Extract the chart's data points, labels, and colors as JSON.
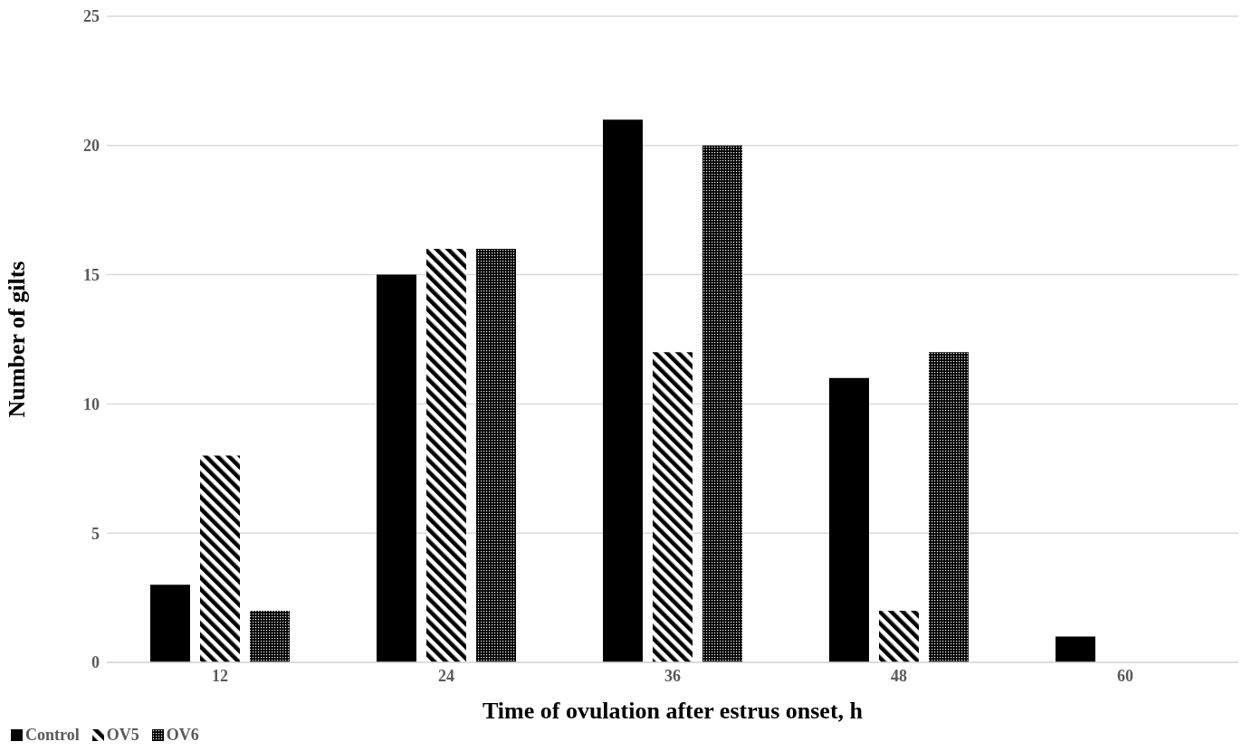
{
  "chart_data": {
    "type": "bar",
    "xlabel": "Time of ovulation after estrus onset, h",
    "ylabel": "Number of gilts",
    "categories": [
      "12",
      "24",
      "36",
      "48",
      "60"
    ],
    "series": [
      {
        "name": "Control",
        "color": "#000000",
        "values": [
          3,
          15,
          21,
          11,
          1
        ]
      },
      {
        "name": "OV5",
        "color": "#000000",
        "values": [
          8,
          16,
          12,
          2,
          0
        ]
      },
      {
        "name": "OV6",
        "color": "#000000",
        "values": [
          2,
          16,
          20,
          12,
          0
        ]
      }
    ],
    "ylim": [
      0,
      25
    ],
    "yticks": [
      0,
      5,
      10,
      15,
      20,
      25
    ],
    "grid": "y",
    "legend": "bottom left"
  }
}
